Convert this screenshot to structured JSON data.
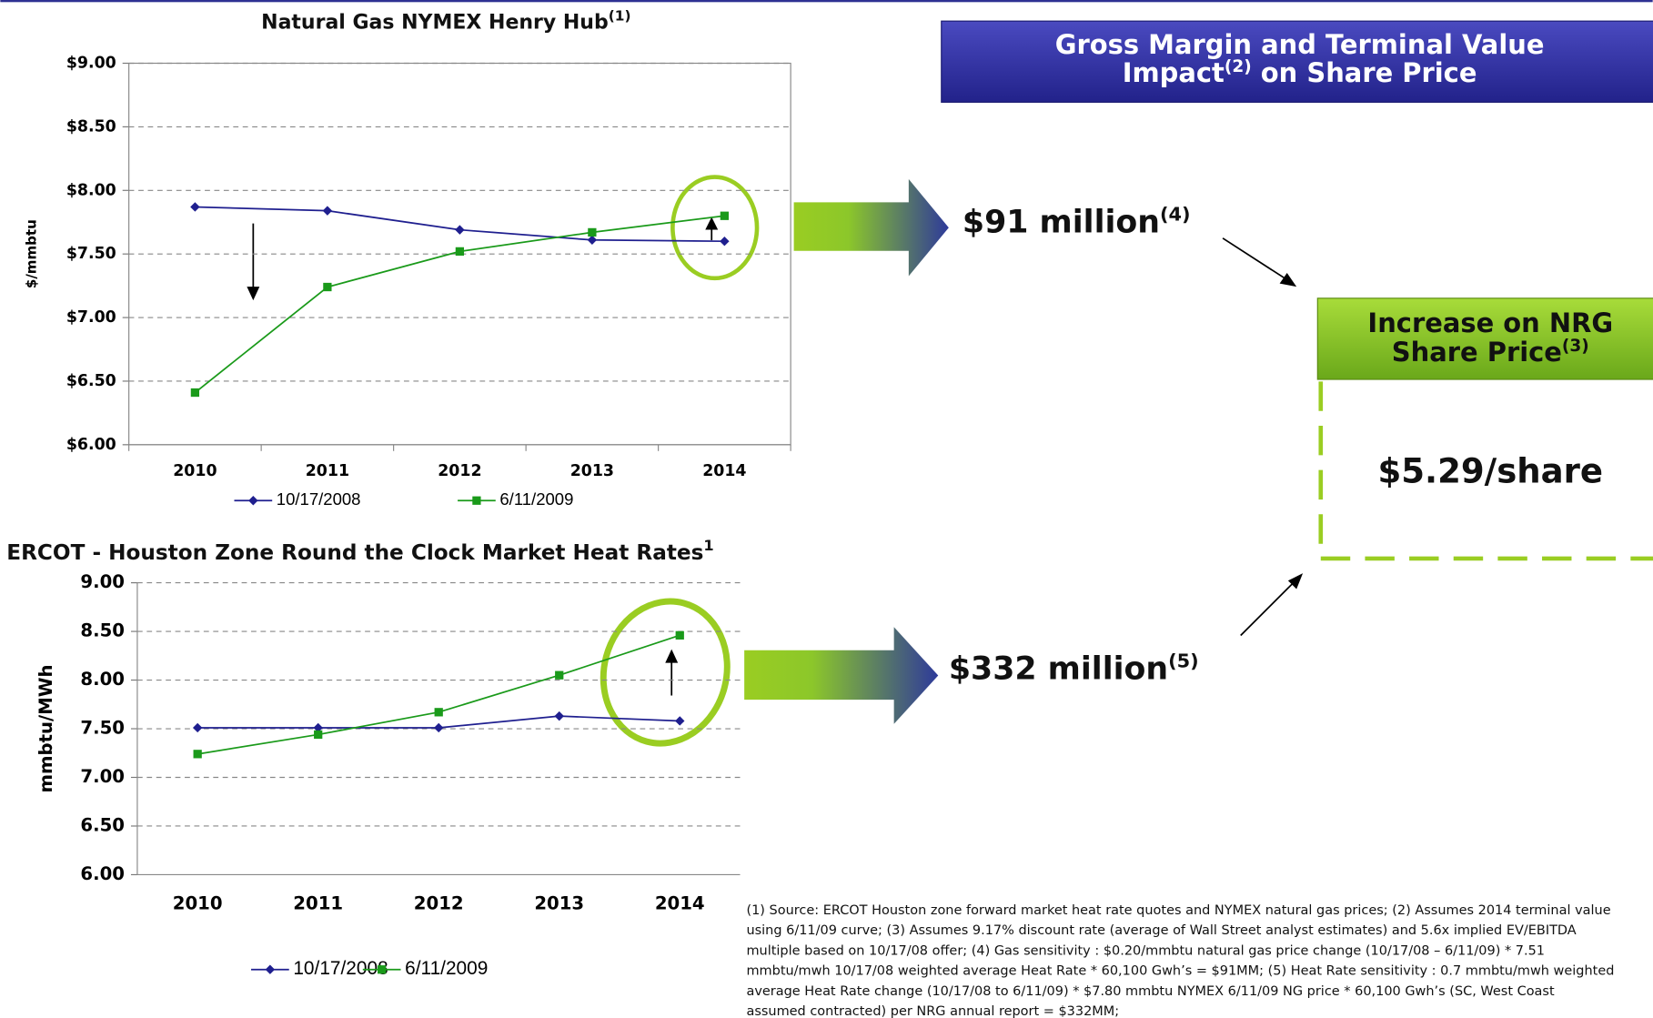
{
  "chart_data": [
    {
      "type": "line",
      "title": "Natural Gas NYMEX Henry Hub",
      "title_note": "(1)",
      "y_label": "$/mmbtu",
      "categories": [
        "2010",
        "2011",
        "2012",
        "2013",
        "2014"
      ],
      "series": [
        {
          "name": "10/17/2008",
          "color": "#1f1f8f",
          "marker": "diamond",
          "values": [
            7.87,
            7.84,
            7.69,
            7.61,
            7.6
          ]
        },
        {
          "name": "6/11/2009",
          "color": "#1a9a1a",
          "marker": "square",
          "values": [
            6.41,
            7.24,
            7.52,
            7.67,
            7.8
          ]
        }
      ],
      "ylim": [
        6,
        9
      ],
      "yticks": [
        {
          "value": 6,
          "label": "$6.00"
        },
        {
          "value": 6.5,
          "label": "$6.50"
        },
        {
          "value": 7,
          "label": "$7.00"
        },
        {
          "value": 7.5,
          "label": "$7.50"
        },
        {
          "value": 8,
          "label": "$8.00"
        },
        {
          "value": 8.5,
          "label": "$8.50"
        },
        {
          "value": 9,
          "label": "$9.00"
        }
      ],
      "grid": true,
      "legend": "bottom"
    },
    {
      "type": "line",
      "title": "ERCOT - Houston Zone Round the Clock Market Heat Rates",
      "title_note": "1",
      "y_label": "mmbtu/MWh",
      "categories": [
        "2010",
        "2011",
        "2012",
        "2013",
        "2014"
      ],
      "series": [
        {
          "name": "10/17/2008",
          "color": "#1f1f8f",
          "marker": "diamond",
          "values": [
            7.51,
            7.51,
            7.51,
            7.63,
            7.58
          ]
        },
        {
          "name": "6/11/2009",
          "color": "#1a9a1a",
          "marker": "square",
          "values": [
            7.24,
            7.44,
            7.67,
            8.05,
            8.46
          ]
        }
      ],
      "ylim": [
        6,
        9
      ],
      "yticks": [
        {
          "value": 6,
          "label": "6.00"
        },
        {
          "value": 6.5,
          "label": "6.50"
        },
        {
          "value": 7,
          "label": "7.00"
        },
        {
          "value": 7.5,
          "label": "7.50"
        },
        {
          "value": 8,
          "label": "8.00"
        },
        {
          "value": 8.5,
          "label": "8.50"
        },
        {
          "value": 9,
          "label": "9.00"
        }
      ],
      "grid": true,
      "legend": "bottom"
    }
  ],
  "callouts": {
    "header_line1": "Gross Margin and Terminal Value",
    "header_line2a": "Impact",
    "header_note": "(2)",
    "header_line2b": " on Share Price",
    "gas_impact": "$91 million",
    "gas_note": "(4)",
    "heat_impact": "$332 million",
    "heat_note": "(5)",
    "result_line1": "Increase on NRG",
    "result_line2": "Share Price",
    "result_note": "(3)",
    "result_value": "$5.29/share"
  },
  "footnote": [
    "(1) Source: ERCOT Houston zone forward market heat rate quotes and NYMEX natural gas prices; (2) Assumes 2014 terminal value",
    "using 6/11/09 curve; (3) Assumes 9.17% discount rate (average of Wall Street analyst estimates) and 5.6x implied EV/EBITDA",
    "multiple based on 10/17/08 offer; (4) Gas sensitivity : $0.20/mmbtu natural gas price change (10/17/08 – 6/11/09) * 7.51",
    "mmbtu/mwh 10/17/08 weighted average Heat Rate * 60,100 Gwh’s = $91MM; (5) Heat Rate sensitivity : 0.7 mmbtu/mwh weighted",
    "average Heat Rate change (10/17/08 to 6/11/09) * $7.80 mmbtu NYMEX 6/11/09 NG price * 60,100 Gwh’s (SC, West Coast",
    "assumed contracted) per NRG annual report = $332MM;"
  ]
}
